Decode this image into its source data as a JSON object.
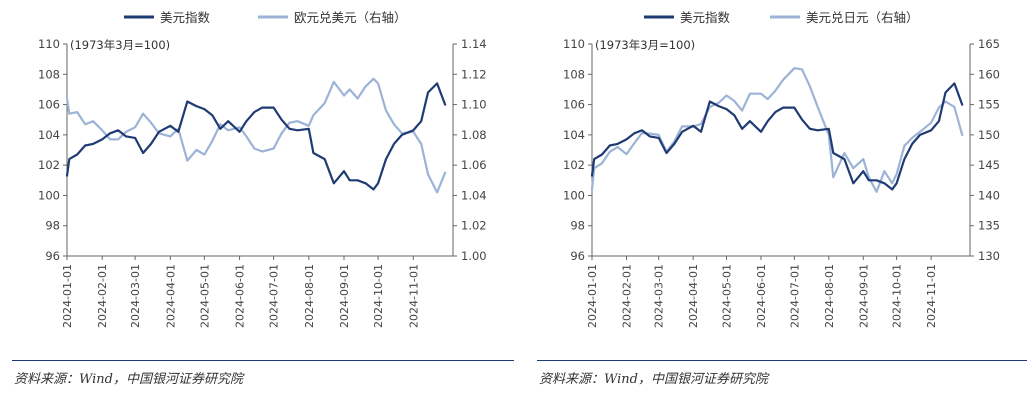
{
  "colors": {
    "dxy": "#1f3b73",
    "fx": "#9db3d6",
    "axis": "#666666",
    "rule": "#1f3b73"
  },
  "sources": [
    "资料来源：Wind，中国银河证券研究院",
    "资料来源：Wind，中国银河证券研究院"
  ],
  "chart_data": [
    {
      "type": "line",
      "note": "(1973年3月=100)",
      "x_ticks": [
        "2024-01-01",
        "2024-02-01",
        "2024-03-01",
        "2024-04-01",
        "2024-05-01",
        "2024-06-01",
        "2024-07-01",
        "2024-08-01",
        "2024-09-01",
        "2024-10-01",
        "2024-11-01"
      ],
      "ylim_left": [
        96,
        110
      ],
      "y_ticks_left": [
        "96",
        "98",
        "100",
        "102",
        "104",
        "106",
        "108",
        "110"
      ],
      "ylim_right": [
        1.0,
        1.14
      ],
      "y_ticks_right": [
        "1.00",
        "1.02",
        "1.04",
        "1.06",
        "1.08",
        "1.10",
        "1.12",
        "1.14"
      ],
      "series": [
        {
          "name": "美元指数",
          "axis": "left",
          "color": "#1f3b73",
          "x": [
            "2024-01-01",
            "2024-01-03",
            "2024-01-10",
            "2024-01-17",
            "2024-01-24",
            "2024-02-01",
            "2024-02-08",
            "2024-02-15",
            "2024-02-22",
            "2024-03-01",
            "2024-03-08",
            "2024-03-15",
            "2024-03-22",
            "2024-04-01",
            "2024-04-08",
            "2024-04-16",
            "2024-04-24",
            "2024-05-01",
            "2024-05-08",
            "2024-05-15",
            "2024-05-22",
            "2024-06-01",
            "2024-06-07",
            "2024-06-14",
            "2024-06-21",
            "2024-07-01",
            "2024-07-08",
            "2024-07-15",
            "2024-07-22",
            "2024-08-01",
            "2024-08-05",
            "2024-08-15",
            "2024-08-23",
            "2024-09-01",
            "2024-09-06",
            "2024-09-13",
            "2024-09-20",
            "2024-09-27",
            "2024-10-01",
            "2024-10-08",
            "2024-10-15",
            "2024-10-22",
            "2024-11-01",
            "2024-11-08",
            "2024-11-14",
            "2024-11-22",
            "2024-11-29"
          ],
          "y": [
            101.3,
            102.4,
            102.7,
            103.3,
            103.4,
            103.7,
            104.1,
            104.3,
            103.9,
            103.8,
            102.8,
            103.4,
            104.2,
            104.6,
            104.2,
            106.2,
            105.9,
            105.7,
            105.3,
            104.4,
            104.9,
            104.2,
            104.9,
            105.5,
            105.8,
            105.8,
            105.0,
            104.4,
            104.3,
            104.4,
            102.8,
            102.4,
            100.8,
            101.6,
            101.0,
            101.0,
            100.8,
            100.4,
            100.8,
            102.4,
            103.4,
            104.0,
            104.3,
            104.9,
            106.8,
            107.4,
            106.0
          ]
        },
        {
          "name": "欧元兑美元（右轴）",
          "axis": "right",
          "color": "#9db3d6",
          "x": [
            "2024-01-01",
            "2024-01-03",
            "2024-01-10",
            "2024-01-17",
            "2024-01-24",
            "2024-02-01",
            "2024-02-08",
            "2024-02-15",
            "2024-02-22",
            "2024-03-01",
            "2024-03-08",
            "2024-03-15",
            "2024-03-22",
            "2024-04-01",
            "2024-04-08",
            "2024-04-16",
            "2024-04-24",
            "2024-05-01",
            "2024-05-08",
            "2024-05-15",
            "2024-05-22",
            "2024-06-01",
            "2024-06-07",
            "2024-06-14",
            "2024-06-21",
            "2024-07-01",
            "2024-07-08",
            "2024-07-15",
            "2024-07-22",
            "2024-08-01",
            "2024-08-05",
            "2024-08-15",
            "2024-08-23",
            "2024-09-01",
            "2024-09-06",
            "2024-09-13",
            "2024-09-20",
            "2024-09-27",
            "2024-10-01",
            "2024-10-08",
            "2024-10-15",
            "2024-10-22",
            "2024-11-01",
            "2024-11-08",
            "2024-11-14",
            "2024-11-22",
            "2024-11-29"
          ],
          "y": [
            1.104,
            1.094,
            1.095,
            1.087,
            1.089,
            1.083,
            1.077,
            1.077,
            1.082,
            1.085,
            1.094,
            1.088,
            1.081,
            1.079,
            1.084,
            1.063,
            1.07,
            1.067,
            1.076,
            1.087,
            1.083,
            1.085,
            1.079,
            1.071,
            1.069,
            1.071,
            1.081,
            1.088,
            1.089,
            1.086,
            1.093,
            1.101,
            1.115,
            1.106,
            1.11,
            1.104,
            1.112,
            1.117,
            1.114,
            1.096,
            1.087,
            1.081,
            1.082,
            1.074,
            1.054,
            1.042,
            1.055
          ]
        }
      ]
    },
    {
      "type": "line",
      "note": "(1973年3月=100)",
      "x_ticks": [
        "2024-01-01",
        "2024-02-01",
        "2024-03-01",
        "2024-04-01",
        "2024-05-01",
        "2024-06-01",
        "2024-07-01",
        "2024-08-01",
        "2024-09-01",
        "2024-10-01",
        "2024-11-01"
      ],
      "ylim_left": [
        96,
        110
      ],
      "y_ticks_left": [
        "96",
        "98",
        "100",
        "102",
        "104",
        "106",
        "108",
        "110"
      ],
      "ylim_right": [
        130,
        165
      ],
      "y_ticks_right": [
        "130",
        "135",
        "140",
        "145",
        "150",
        "155",
        "160",
        "165"
      ],
      "series": [
        {
          "name": "美元指数",
          "axis": "left",
          "color": "#1f3b73",
          "x": [
            "2024-01-01",
            "2024-01-03",
            "2024-01-10",
            "2024-01-17",
            "2024-01-24",
            "2024-02-01",
            "2024-02-08",
            "2024-02-15",
            "2024-02-22",
            "2024-03-01",
            "2024-03-08",
            "2024-03-15",
            "2024-03-22",
            "2024-04-01",
            "2024-04-08",
            "2024-04-16",
            "2024-04-24",
            "2024-05-01",
            "2024-05-08",
            "2024-05-15",
            "2024-05-22",
            "2024-06-01",
            "2024-06-07",
            "2024-06-14",
            "2024-06-21",
            "2024-07-01",
            "2024-07-08",
            "2024-07-15",
            "2024-07-22",
            "2024-08-01",
            "2024-08-05",
            "2024-08-15",
            "2024-08-23",
            "2024-09-01",
            "2024-09-06",
            "2024-09-13",
            "2024-09-20",
            "2024-09-27",
            "2024-10-01",
            "2024-10-08",
            "2024-10-15",
            "2024-10-22",
            "2024-11-01",
            "2024-11-08",
            "2024-11-14",
            "2024-11-22",
            "2024-11-29"
          ],
          "y": [
            101.3,
            102.4,
            102.7,
            103.3,
            103.4,
            103.7,
            104.1,
            104.3,
            103.9,
            103.8,
            102.8,
            103.4,
            104.2,
            104.6,
            104.2,
            106.2,
            105.9,
            105.7,
            105.3,
            104.4,
            104.9,
            104.2,
            104.9,
            105.5,
            105.8,
            105.8,
            105.0,
            104.4,
            104.3,
            104.4,
            102.8,
            102.4,
            100.8,
            101.6,
            101.0,
            101.0,
            100.8,
            100.4,
            100.8,
            102.4,
            103.4,
            104.0,
            104.3,
            104.9,
            106.8,
            107.4,
            106.0
          ]
        },
        {
          "name": "美元兑日元（右轴）",
          "axis": "right",
          "color": "#9db3d6",
          "x": [
            "2024-01-01",
            "2024-01-03",
            "2024-01-10",
            "2024-01-17",
            "2024-01-24",
            "2024-02-01",
            "2024-02-08",
            "2024-02-15",
            "2024-02-22",
            "2024-03-01",
            "2024-03-08",
            "2024-03-15",
            "2024-03-22",
            "2024-04-01",
            "2024-04-08",
            "2024-04-16",
            "2024-04-24",
            "2024-05-01",
            "2024-05-08",
            "2024-05-15",
            "2024-05-22",
            "2024-06-01",
            "2024-06-07",
            "2024-06-14",
            "2024-06-21",
            "2024-07-01",
            "2024-07-08",
            "2024-07-15",
            "2024-07-22",
            "2024-08-01",
            "2024-08-05",
            "2024-08-15",
            "2024-08-23",
            "2024-09-01",
            "2024-09-06",
            "2024-09-13",
            "2024-09-20",
            "2024-09-27",
            "2024-10-01",
            "2024-10-08",
            "2024-10-15",
            "2024-10-22",
            "2024-11-01",
            "2024-11-08",
            "2024-11-14",
            "2024-11-22",
            "2024-11-29"
          ],
          "y": [
            141.0,
            144.5,
            145.3,
            147.2,
            148.0,
            146.8,
            148.6,
            150.3,
            150.2,
            150.0,
            147.2,
            148.9,
            151.4,
            151.4,
            151.8,
            154.6,
            155.3,
            156.5,
            155.6,
            154.0,
            156.8,
            156.8,
            155.9,
            157.3,
            159.1,
            161.0,
            160.8,
            158.0,
            154.6,
            150.0,
            143.0,
            147.0,
            144.5,
            146.0,
            143.0,
            140.6,
            144.0,
            142.0,
            143.5,
            148.2,
            149.5,
            150.5,
            152.0,
            154.5,
            155.5,
            154.6,
            150.0
          ]
        }
      ]
    }
  ]
}
